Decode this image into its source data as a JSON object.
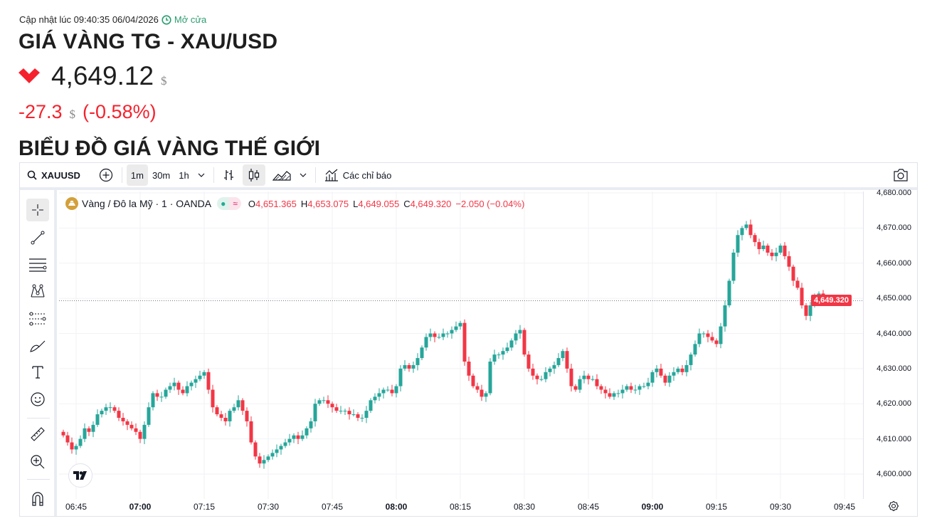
{
  "header": {
    "updated_label": "Cập nhật lúc 09:40:35 06/04/2026",
    "market_status": "Mở cửa",
    "title": "GIÁ VÀNG TG - XAU/USD",
    "price": "4,649.12",
    "currency": "$",
    "change": "-27.3",
    "change_pct": "(-0.58%)",
    "direction": "down",
    "section_heading": "BIỂU ĐỒ GIÁ VÀNG THẾ GIỚI"
  },
  "colors": {
    "up": "#26a69a",
    "down": "#f23645",
    "accent_red": "#f5222d",
    "open_green": "#2a9d6f"
  },
  "toolbar": {
    "symbol": "XAUUSD",
    "intervals": [
      "1m",
      "30m",
      "1h"
    ],
    "selected_interval": "1m",
    "indicators_label": "Các chỉ báo"
  },
  "legend": {
    "name": "Vàng / Đô la Mỹ · 1 · OANDA",
    "o_label": "O",
    "o": "4,651.365",
    "h_label": "H",
    "h": "4,653.075",
    "l_label": "L",
    "l": "4,649.055",
    "c_label": "C",
    "c": "4,649.320",
    "change": "−2.050 (−0.04%)"
  },
  "left_tools": [
    "crosshair-icon",
    "trend-line-icon",
    "fib-retracement-icon",
    "pattern-icon",
    "forecast-icon",
    "brush-icon",
    "text-icon",
    "emoji-icon",
    "ruler-icon",
    "zoom-in-icon",
    "magnet-icon"
  ],
  "chart_data": {
    "type": "candlestick",
    "interval": "1m",
    "start_time": "06:42",
    "last_price_label": "4,649.320",
    "y_ticks": [
      "4,680.000",
      "4,670.000",
      "4,660.000",
      "4,650.000",
      "4,640.000",
      "4,630.000",
      "4,620.000",
      "4,610.000",
      "4,600.000"
    ],
    "y_tick_values": [
      4680,
      4670,
      4660,
      4650,
      4640,
      4630,
      4620,
      4610,
      4600
    ],
    "x_ticks": [
      "06:45",
      "07:00",
      "07:15",
      "07:30",
      "07:45",
      "08:00",
      "08:15",
      "08:30",
      "08:45",
      "09:00",
      "09:15",
      "09:30",
      "09:45"
    ],
    "x_ticks_bold": [
      "07:00",
      "08:00",
      "09:00"
    ],
    "ylim": [
      4596,
      4681
    ],
    "grid": true,
    "first_open": 4612,
    "closes": [
      4611,
      4609,
      4607,
      4608,
      4610,
      4613,
      4612,
      4614,
      4617,
      4618,
      4619,
      4619,
      4618,
      4616,
      4615,
      4614,
      4613,
      4612,
      4610,
      4614,
      4619,
      4623,
      4622,
      4622,
      4624,
      4625,
      4626,
      4624,
      4623,
      4625,
      4626,
      4627,
      4628,
      4629,
      4624,
      4619,
      4617,
      4616,
      4615,
      4618,
      4619,
      4621,
      4618,
      4615,
      4609,
      4605,
      4603,
      4604,
      4605,
      4606,
      4607,
      4608,
      4609,
      4610,
      4611,
      4610,
      4611,
      4613,
      4615,
      4620,
      4621,
      4621,
      4620,
      4619,
      4618,
      4618,
      4618,
      4617,
      4617,
      4616,
      4616,
      4618,
      4621,
      4622,
      4623,
      4624,
      4624,
      4623,
      4625,
      4630,
      4631,
      4630,
      4631,
      4633,
      4636,
      4639,
      4640,
      4639,
      4639,
      4640,
      4640,
      4641,
      4642,
      4643,
      4632,
      4628,
      4625,
      4624,
      4622,
      4623,
      4632,
      4634,
      4634,
      4635,
      4636,
      4638,
      4640,
      4641,
      4634,
      4630,
      4628,
      4627,
      4627,
      4629,
      4630,
      4631,
      4633,
      4635,
      4630,
      4625,
      4624,
      4627,
      4628,
      4627,
      4627,
      4625,
      4624,
      4623,
      4622,
      4623,
      4623,
      4624,
      4625,
      4624,
      4624,
      4625,
      4625,
      4626,
      4629,
      4630,
      4628,
      4626,
      4628,
      4629,
      4630,
      4629,
      4631,
      4634,
      4637,
      4640,
      4640,
      4639,
      4638,
      4637,
      4642,
      4648,
      4655,
      4663,
      4668,
      4670,
      4671,
      4668,
      4666,
      4664,
      4665,
      4663,
      4662,
      4663,
      4665,
      4662,
      4659,
      4655,
      4653,
      4648,
      4645,
      4648,
      4650,
      4651.365,
      4649.32
    ]
  }
}
